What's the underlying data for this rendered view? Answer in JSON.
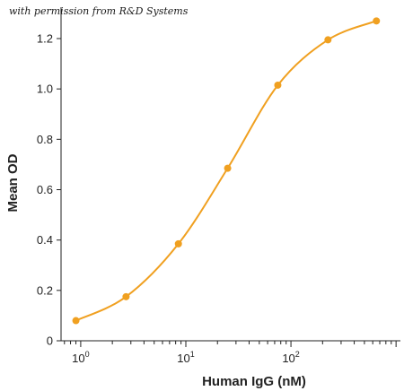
{
  "watermark": "with permission from R&D Systems",
  "chart_data": {
    "type": "line",
    "xlabel": "Human IgG (nM)",
    "ylabel": "Mean OD",
    "x_scale": "log",
    "xlim": [
      0.65,
      1100
    ],
    "ylim": [
      0,
      1.3
    ],
    "x_ticks": [
      {
        "value": 1,
        "base": "10",
        "exp": "0"
      },
      {
        "value": 10,
        "base": "10",
        "exp": "1"
      },
      {
        "value": 100,
        "base": "10",
        "exp": "2"
      }
    ],
    "y_ticks": [
      {
        "value": 0,
        "label": "0"
      },
      {
        "value": 0.2,
        "label": "0.2"
      },
      {
        "value": 0.4,
        "label": "0.4"
      },
      {
        "value": 0.6,
        "label": "0.6"
      },
      {
        "value": 0.8,
        "label": "0.8"
      },
      {
        "value": 1.0,
        "label": "1.0"
      },
      {
        "value": 1.2,
        "label": "1.2"
      }
    ],
    "color": "#f0a020",
    "series": [
      {
        "x": [
          0.9,
          2.7,
          8.5,
          25,
          75,
          225,
          650
        ],
        "y": [
          0.08,
          0.175,
          0.385,
          0.685,
          1.015,
          1.195,
          1.27
        ]
      }
    ],
    "grid": false
  }
}
